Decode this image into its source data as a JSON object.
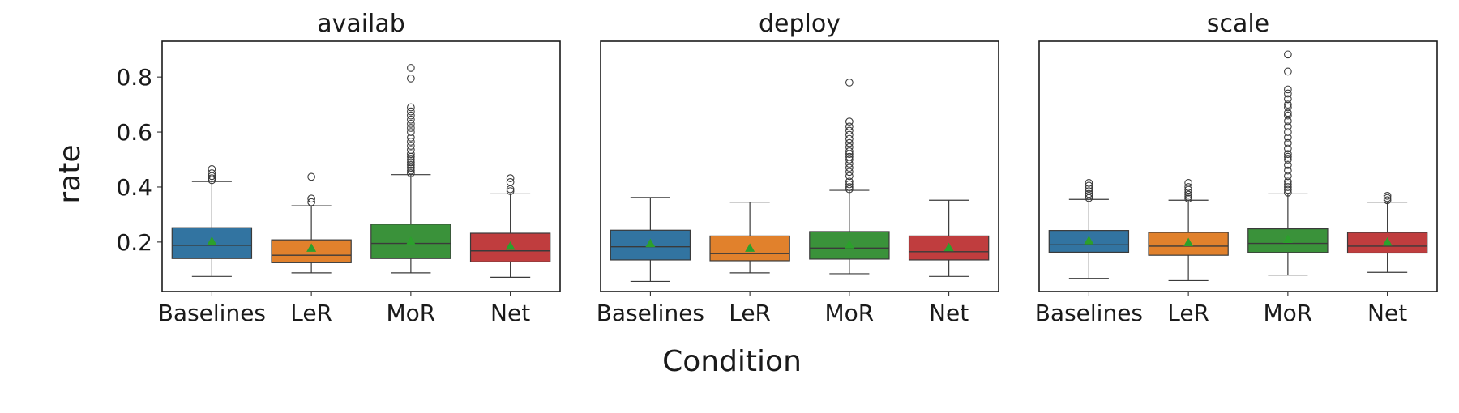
{
  "chart_data": {
    "type": "box",
    "xlabel": "Condition",
    "ylabel": "rate",
    "categories": [
      "Baselines",
      "LeR",
      "MoR",
      "Net"
    ],
    "colors": [
      "#3274a1",
      "#e1812c",
      "#3a923a",
      "#c03d3e"
    ],
    "mean_marker_color": "#2ca02c",
    "y_ticks": [
      0.2,
      0.4,
      0.6,
      0.8
    ],
    "y_tick_labels": [
      "0.2",
      "0.4",
      "0.6",
      "0.8"
    ],
    "ylim": [
      0.02,
      0.93
    ],
    "shared_y": true,
    "grid": false,
    "panels": [
      {
        "title": "availab",
        "boxes": [
          {
            "category": "Baselines",
            "whislo": 0.075,
            "q1": 0.14,
            "median": 0.188,
            "q3": 0.252,
            "whishi": 0.42,
            "mean": 0.203,
            "fliers": [
              0.425,
              0.432,
              0.44,
              0.45,
              0.465
            ]
          },
          {
            "category": "LeR",
            "whislo": 0.088,
            "q1": 0.125,
            "median": 0.152,
            "q3": 0.208,
            "whishi": 0.332,
            "mean": 0.178,
            "fliers": [
              0.345,
              0.358,
              0.437
            ]
          },
          {
            "category": "MoR",
            "whislo": 0.088,
            "q1": 0.14,
            "median": 0.195,
            "q3": 0.265,
            "whishi": 0.445,
            "mean": 0.203,
            "fliers": [
              0.45,
              0.46,
              0.47,
              0.48,
              0.49,
              0.5,
              0.51,
              0.52,
              0.535,
              0.55,
              0.565,
              0.58,
              0.6,
              0.615,
              0.63,
              0.645,
              0.66,
              0.675,
              0.69,
              0.795,
              0.833
            ]
          },
          {
            "category": "Net",
            "whislo": 0.072,
            "q1": 0.128,
            "median": 0.168,
            "q3": 0.232,
            "whishi": 0.375,
            "mean": 0.185,
            "fliers": [
              0.385,
              0.392,
              0.418,
              0.432
            ]
          }
        ]
      },
      {
        "title": "deploy",
        "boxes": [
          {
            "category": "Baselines",
            "whislo": 0.057,
            "q1": 0.135,
            "median": 0.183,
            "q3": 0.243,
            "whishi": 0.362,
            "mean": 0.195,
            "fliers": []
          },
          {
            "category": "LeR",
            "whislo": 0.088,
            "q1": 0.132,
            "median": 0.158,
            "q3": 0.222,
            "whishi": 0.345,
            "mean": 0.178,
            "fliers": []
          },
          {
            "category": "MoR",
            "whislo": 0.085,
            "q1": 0.138,
            "median": 0.178,
            "q3": 0.238,
            "whishi": 0.388,
            "mean": 0.19,
            "fliers": [
              0.392,
              0.4,
              0.41,
              0.42,
              0.44,
              0.455,
              0.47,
              0.485,
              0.5,
              0.51,
              0.52,
              0.53,
              0.545,
              0.56,
              0.575,
              0.59,
              0.605,
              0.62,
              0.638,
              0.78
            ]
          },
          {
            "category": "Net",
            "whislo": 0.075,
            "q1": 0.135,
            "median": 0.165,
            "q3": 0.222,
            "whishi": 0.352,
            "mean": 0.18,
            "fliers": []
          }
        ]
      },
      {
        "title": "scale",
        "boxes": [
          {
            "category": "Baselines",
            "whislo": 0.068,
            "q1": 0.163,
            "median": 0.19,
            "q3": 0.242,
            "whishi": 0.355,
            "mean": 0.205,
            "fliers": [
              0.36,
              0.368,
              0.375,
              0.385,
              0.395,
              0.405,
              0.415
            ]
          },
          {
            "category": "LeR",
            "whislo": 0.06,
            "q1": 0.152,
            "median": 0.185,
            "q3": 0.235,
            "whishi": 0.352,
            "mean": 0.198,
            "fliers": [
              0.358,
              0.365,
              0.372,
              0.38,
              0.39,
              0.4,
              0.415
            ]
          },
          {
            "category": "MoR",
            "whislo": 0.08,
            "q1": 0.162,
            "median": 0.195,
            "q3": 0.248,
            "whishi": 0.375,
            "mean": 0.21,
            "fliers": [
              0.38,
              0.39,
              0.4,
              0.41,
              0.42,
              0.44,
              0.46,
              0.48,
              0.5,
              0.51,
              0.52,
              0.54,
              0.56,
              0.58,
              0.6,
              0.62,
              0.64,
              0.66,
              0.67,
              0.69,
              0.7,
              0.72,
              0.74,
              0.755,
              0.82,
              0.882
            ]
          },
          {
            "category": "Net",
            "whislo": 0.09,
            "q1": 0.16,
            "median": 0.185,
            "q3": 0.235,
            "whishi": 0.345,
            "mean": 0.2,
            "fliers": [
              0.352,
              0.36,
              0.368
            ]
          }
        ]
      }
    ]
  }
}
